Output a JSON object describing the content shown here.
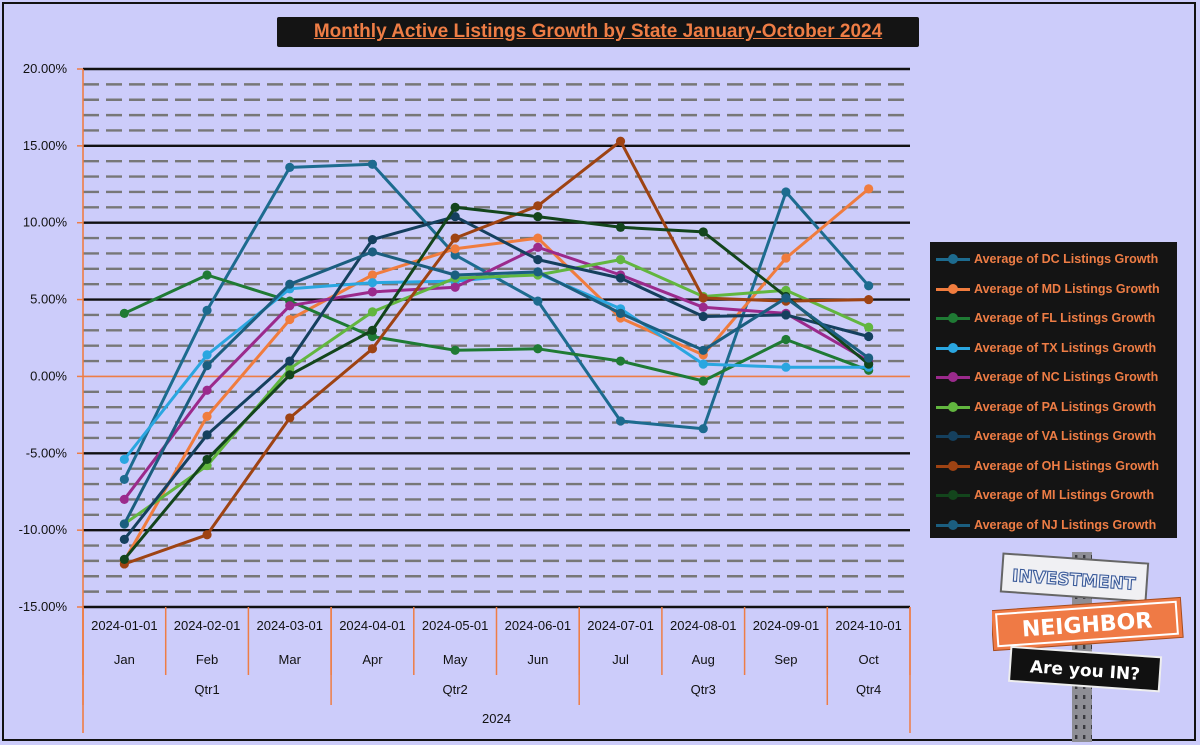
{
  "chart_data": {
    "type": "line",
    "title": "Monthly Active Listings Growth by State January-October 2024",
    "xlabel": "",
    "ylabel": "",
    "ylim": [
      -15,
      20
    ],
    "y_ticks": [
      "20.00%",
      "15.00%",
      "10.00%",
      "5.00%",
      "0.00%",
      "-5.00%",
      "-10.00%",
      "-15.00%"
    ],
    "categories": [
      "2024-01-01",
      "2024-02-01",
      "2024-03-01",
      "2024-04-01",
      "2024-05-01",
      "2024-06-01",
      "2024-07-01",
      "2024-08-01",
      "2024-09-01",
      "2024-10-01"
    ],
    "months": [
      "Jan",
      "Feb",
      "Mar",
      "Apr",
      "May",
      "Jun",
      "Jul",
      "Aug",
      "Sep",
      "Oct"
    ],
    "quarters": [
      {
        "label": "Qtr1",
        "start": 0,
        "end": 2
      },
      {
        "label": "Qtr2",
        "start": 3,
        "end": 5
      },
      {
        "label": "Qtr3",
        "start": 6,
        "end": 8
      },
      {
        "label": "Qtr4",
        "start": 9,
        "end": 9
      }
    ],
    "year": "2024",
    "legend_position": "right",
    "series": [
      {
        "name": "Average of DC Listings Growth",
        "color": "#1d6b8f",
        "values": [
          -6.7,
          4.3,
          13.6,
          13.8,
          7.9,
          4.9,
          -2.9,
          -3.4,
          12.0,
          5.9
        ]
      },
      {
        "name": "Average of MD Listings Growth",
        "color": "#f07c3e",
        "values": [
          -12.0,
          -2.6,
          3.7,
          6.6,
          8.3,
          9.0,
          3.8,
          1.4,
          7.7,
          12.2
        ]
      },
      {
        "name": "Average of FL Listings Growth",
        "color": "#1f7a34",
        "values": [
          4.1,
          6.6,
          4.9,
          2.6,
          1.7,
          1.8,
          1.0,
          -0.3,
          2.4,
          0.4
        ]
      },
      {
        "name": "Average of TX Listings Growth",
        "color": "#2aa6e0",
        "values": [
          -5.4,
          1.4,
          5.7,
          6.1,
          6.2,
          6.7,
          4.4,
          0.8,
          0.6,
          0.6
        ]
      },
      {
        "name": "Average of NC Listings Growth",
        "color": "#9b2a8c",
        "values": [
          -8.0,
          -0.9,
          4.6,
          5.5,
          5.8,
          8.4,
          6.6,
          4.5,
          4.1,
          1.0
        ]
      },
      {
        "name": "Average of PA Listings Growth",
        "color": "#62b63f",
        "values": [
          -9.6,
          -5.8,
          0.5,
          4.2,
          6.4,
          6.6,
          7.6,
          5.2,
          5.6,
          3.2
        ]
      },
      {
        "name": "Average of VA Listings Growth",
        "color": "#15405e",
        "values": [
          -10.6,
          -3.8,
          1.0,
          8.9,
          10.4,
          7.6,
          6.4,
          3.9,
          4.0,
          2.6
        ]
      },
      {
        "name": "Average of OH Listings Growth",
        "color": "#9e4313",
        "values": [
          -12.2,
          -10.3,
          -2.7,
          1.8,
          9.0,
          11.1,
          15.3,
          5.1,
          4.9,
          5.0
        ]
      },
      {
        "name": "Average of MI Listings Growth",
        "color": "#13451c",
        "values": [
          -11.9,
          -5.4,
          0.1,
          3.0,
          11.0,
          10.4,
          9.7,
          9.4,
          5.2,
          0.8
        ]
      },
      {
        "name": "Average of NJ Listings Growth",
        "color": "#1b5e7f",
        "values": [
          -9.6,
          0.7,
          6.0,
          8.1,
          6.6,
          6.8,
          4.1,
          1.7,
          5.1,
          1.2
        ]
      }
    ]
  },
  "logo": {
    "line1": "INVESTMENT",
    "line2": "NEIGHBOR",
    "line3": "Are you IN?"
  }
}
